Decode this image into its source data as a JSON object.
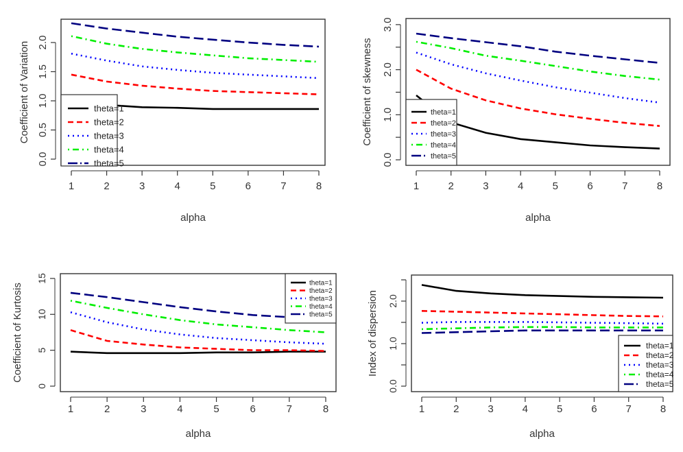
{
  "chart_data": [
    {
      "id": "cv",
      "type": "line",
      "title": "",
      "xlabel": "alpha",
      "ylabel": "Coefficient of Variation",
      "x": [
        1,
        2,
        3,
        4,
        5,
        6,
        7,
        8
      ],
      "xticks": [
        "1",
        "2",
        "3",
        "4",
        "5",
        "6",
        "7",
        "8"
      ],
      "ylim": [
        0,
        2.3
      ],
      "yticks": [
        0,
        0.5,
        1.0,
        1.5,
        2.0
      ],
      "yticklabels": [
        "0.0",
        "0.5",
        "1.0",
        "1.5",
        "2.0"
      ],
      "grid": false,
      "legend_position": "bottom-left",
      "series": [
        {
          "name": "theta=1",
          "color": "#000000",
          "dash": "solid",
          "values": [
            0.97,
            0.93,
            0.89,
            0.88,
            0.86,
            0.86,
            0.86,
            0.86
          ]
        },
        {
          "name": "theta=2",
          "color": "#ff0000",
          "dash": "dashed",
          "values": [
            1.45,
            1.33,
            1.26,
            1.21,
            1.17,
            1.15,
            1.13,
            1.11
          ]
        },
        {
          "name": "theta=3",
          "color": "#0000ff",
          "dash": "dotted",
          "values": [
            1.81,
            1.69,
            1.59,
            1.53,
            1.48,
            1.45,
            1.42,
            1.39
          ]
        },
        {
          "name": "theta=4",
          "color": "#00ee00",
          "dash": "dotdash",
          "values": [
            2.11,
            1.98,
            1.89,
            1.83,
            1.78,
            1.73,
            1.7,
            1.67
          ]
        },
        {
          "name": "theta=5",
          "color": "#000080",
          "dash": "longdash",
          "values": [
            2.33,
            2.24,
            2.17,
            2.1,
            2.05,
            2.0,
            1.96,
            1.93
          ]
        }
      ]
    },
    {
      "id": "skewness",
      "type": "line",
      "title": "",
      "xlabel": "alpha",
      "ylabel": "Coefficient of skewness",
      "x": [
        1,
        2,
        3,
        4,
        5,
        6,
        7,
        8
      ],
      "xticks": [
        "1",
        "2",
        "3",
        "4",
        "5",
        "6",
        "7",
        "8"
      ],
      "ylim": [
        0,
        3.0
      ],
      "yticks": [
        0,
        0.5,
        1.0,
        1.5,
        2.0,
        2.5,
        3.0
      ],
      "yticklabels": [
        "0.0",
        "",
        "1.0",
        "",
        "2.0",
        "",
        "3.0"
      ],
      "grid": false,
      "legend_position": "bottom-left",
      "series": [
        {
          "name": "theta=1",
          "color": "#000000",
          "dash": "solid",
          "values": [
            1.43,
            0.83,
            0.6,
            0.46,
            0.39,
            0.32,
            0.28,
            0.25
          ]
        },
        {
          "name": "theta=2",
          "color": "#ff0000",
          "dash": "dashed",
          "values": [
            2.0,
            1.58,
            1.32,
            1.14,
            1.01,
            0.91,
            0.82,
            0.75
          ]
        },
        {
          "name": "theta=3",
          "color": "#0000ff",
          "dash": "dotted",
          "values": [
            2.38,
            2.12,
            1.92,
            1.76,
            1.61,
            1.49,
            1.37,
            1.27
          ]
        },
        {
          "name": "theta=4",
          "color": "#00ee00",
          "dash": "dotdash",
          "values": [
            2.62,
            2.48,
            2.31,
            2.2,
            2.08,
            1.96,
            1.86,
            1.78
          ]
        },
        {
          "name": "theta=5",
          "color": "#000080",
          "dash": "longdash",
          "values": [
            2.8,
            2.7,
            2.61,
            2.52,
            2.4,
            2.31,
            2.23,
            2.15
          ]
        }
      ]
    },
    {
      "id": "kurtosis",
      "type": "line",
      "title": "",
      "xlabel": "alpha",
      "ylabel": "Coefficient of Kurtosis",
      "x": [
        1,
        2,
        3,
        4,
        5,
        6,
        7,
        8
      ],
      "xticks": [
        "1",
        "2",
        "3",
        "4",
        "5",
        "6",
        "7",
        "8"
      ],
      "ylim": [
        0,
        15
      ],
      "yticks": [
        0,
        5,
        10,
        15
      ],
      "yticklabels": [
        "0",
        "5",
        "10",
        "15"
      ],
      "grid": false,
      "legend_position": "top-right",
      "series": [
        {
          "name": "theta=1",
          "color": "#000000",
          "dash": "solid",
          "values": [
            4.8,
            4.6,
            4.6,
            4.6,
            4.7,
            4.7,
            4.8,
            4.8
          ]
        },
        {
          "name": "theta=2",
          "color": "#ff0000",
          "dash": "dashed",
          "values": [
            7.8,
            6.3,
            5.8,
            5.4,
            5.2,
            5.0,
            5.0,
            4.9
          ]
        },
        {
          "name": "theta=3",
          "color": "#0000ff",
          "dash": "dotted",
          "values": [
            10.3,
            8.9,
            7.9,
            7.2,
            6.7,
            6.4,
            6.1,
            5.9
          ]
        },
        {
          "name": "theta=4",
          "color": "#00ee00",
          "dash": "dotdash",
          "values": [
            11.9,
            10.9,
            10.0,
            9.2,
            8.6,
            8.2,
            7.8,
            7.5
          ]
        },
        {
          "name": "theta=5",
          "color": "#000080",
          "dash": "longdash",
          "values": [
            13.0,
            12.4,
            11.7,
            11.0,
            10.4,
            9.9,
            9.6,
            9.3
          ]
        }
      ]
    },
    {
      "id": "dispersion",
      "type": "line",
      "title": "",
      "xlabel": "alpha",
      "ylabel": "Index of dispersion",
      "x": [
        1,
        2,
        3,
        4,
        5,
        6,
        7,
        8
      ],
      "xticks": [
        "1",
        "2",
        "3",
        "4",
        "5",
        "6",
        "7",
        "8"
      ],
      "ylim": [
        0,
        2.5
      ],
      "yticks": [
        0,
        0.5,
        1.0,
        1.5,
        2.0,
        2.5
      ],
      "yticklabels": [
        "0.0",
        "",
        "1.0",
        "",
        "2.0",
        ""
      ],
      "grid": false,
      "legend_position": "bottom-right",
      "series": [
        {
          "name": "theta=1",
          "color": "#000000",
          "dash": "solid",
          "values": [
            2.38,
            2.24,
            2.18,
            2.14,
            2.12,
            2.1,
            2.09,
            2.08
          ]
        },
        {
          "name": "theta=2",
          "color": "#ff0000",
          "dash": "dashed",
          "values": [
            1.77,
            1.75,
            1.73,
            1.71,
            1.69,
            1.67,
            1.65,
            1.64
          ]
        },
        {
          "name": "theta=3",
          "color": "#0000ff",
          "dash": "dotted",
          "values": [
            1.49,
            1.51,
            1.51,
            1.51,
            1.5,
            1.49,
            1.48,
            1.47
          ]
        },
        {
          "name": "theta=4",
          "color": "#00ee00",
          "dash": "dotdash",
          "values": [
            1.34,
            1.36,
            1.38,
            1.39,
            1.39,
            1.38,
            1.38,
            1.38
          ]
        },
        {
          "name": "theta=5",
          "color": "#000080",
          "dash": "longdash",
          "values": [
            1.25,
            1.27,
            1.29,
            1.31,
            1.31,
            1.31,
            1.31,
            1.31
          ]
        }
      ]
    }
  ]
}
